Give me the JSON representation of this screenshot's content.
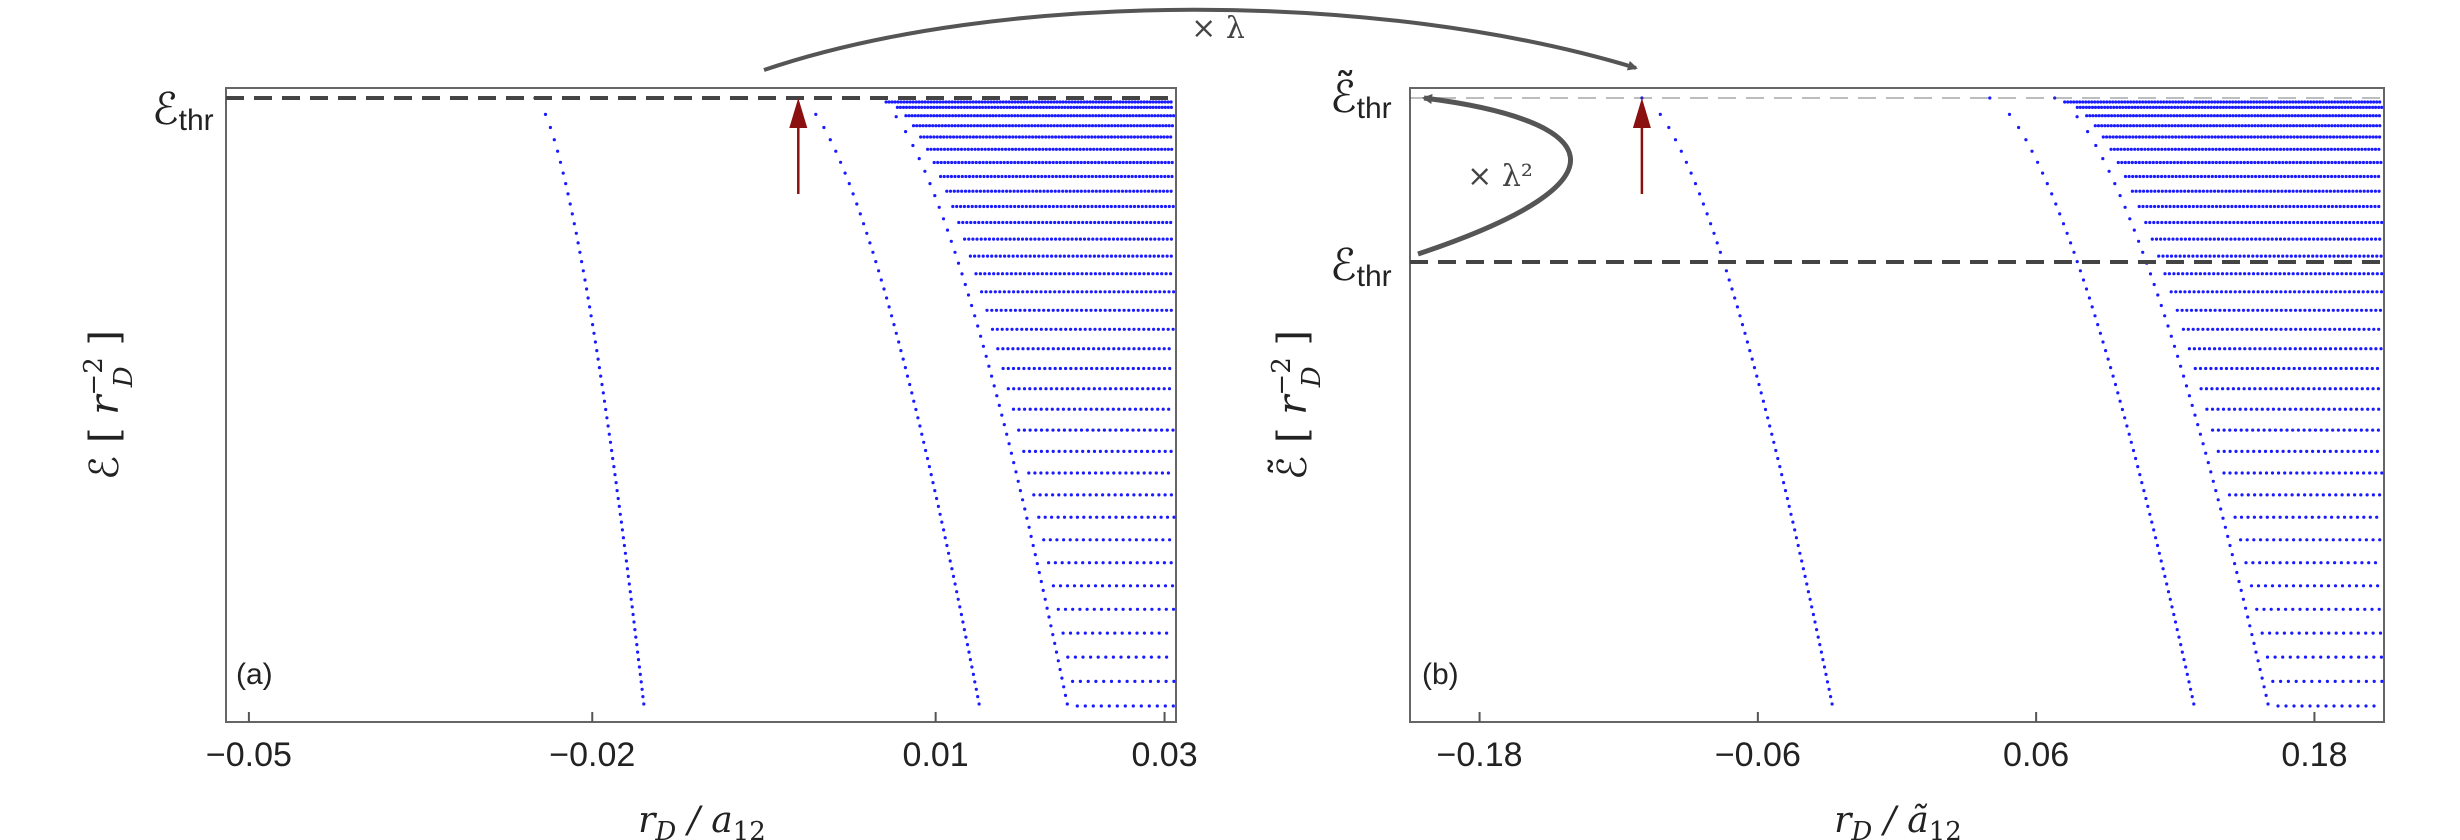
{
  "figure": {
    "top_arrow_label": "× λ",
    "side_arrow_label": "× λ²",
    "colors": {
      "points": "#1a1aff",
      "threshold_line": "#444444",
      "marker_arrow": "#8b1010",
      "curve_arrow": "#555555"
    }
  },
  "chart_data": [
    {
      "type": "scatter",
      "panel": "(a)",
      "xlabel": "r_D / a_12",
      "xlabel_parts": {
        "main": "r",
        "sub": "D",
        "mid": " / a",
        "sub2": "12"
      },
      "ylabel": "ℰ [ r_D^−2 ]",
      "ylabel_parts": {
        "pre": "ℰ [ ",
        "r": "r",
        "sup": "−2",
        "sub": "D",
        "post": " ]"
      },
      "xlim": [
        -0.052,
        0.031
      ],
      "x_ticks": [
        {
          "value": -0.05,
          "label": "−0.05"
        },
        {
          "value": -0.02,
          "label": "−0.02"
        },
        {
          "value": 0.01,
          "label": "0.01"
        },
        {
          "value": 0.03,
          "label": "0.03"
        }
      ],
      "y_ticks": [],
      "threshold_lines": [
        {
          "label": "ℰthr",
          "text": "ℰ",
          "sub": "thr",
          "level": "top"
        }
      ],
      "marker_arrow_x": -0.002,
      "branches": [
        {
          "x_start": -0.025,
          "x_end": -0.0155
        },
        {
          "x_start": -0.002,
          "x_end": 0.0138
        },
        {
          "x_start": 0.0048,
          "x_end": 0.0215
        }
      ],
      "grid": false
    },
    {
      "type": "scatter",
      "panel": "(b)",
      "xlabel": "r_D / ã_12",
      "xlabel_parts": {
        "main": "r",
        "sub": "D",
        "mid": " / ã",
        "sub2": "12"
      },
      "ylabel": "ℰ̃ [ r_D^−2 ]",
      "ylabel_parts": {
        "pre": "ℰ̃ [ ",
        "r": "r",
        "sup": "−2",
        "sub": "D",
        "post": " ]"
      },
      "xlim": [
        -0.21,
        0.21
      ],
      "x_ticks": [
        {
          "value": -0.18,
          "label": "−0.18"
        },
        {
          "value": -0.06,
          "label": "−0.06"
        },
        {
          "value": 0.06,
          "label": "0.06"
        },
        {
          "value": 0.18,
          "label": "0.18"
        }
      ],
      "y_ticks": [],
      "threshold_lines": [
        {
          "label": "ℰ̃thr",
          "text": "ℰ̃",
          "sub": "thr",
          "level": "top"
        },
        {
          "label": "ℰthr",
          "text": "ℰ",
          "sub": "thr",
          "level": "middle"
        }
      ],
      "marker_arrow_x": -0.11,
      "branches": [
        {
          "x_start": -0.11,
          "x_end": -0.028
        },
        {
          "x_start": 0.04,
          "x_end": 0.128
        },
        {
          "x_start": 0.068,
          "x_end": 0.16
        }
      ],
      "grid": false
    }
  ]
}
